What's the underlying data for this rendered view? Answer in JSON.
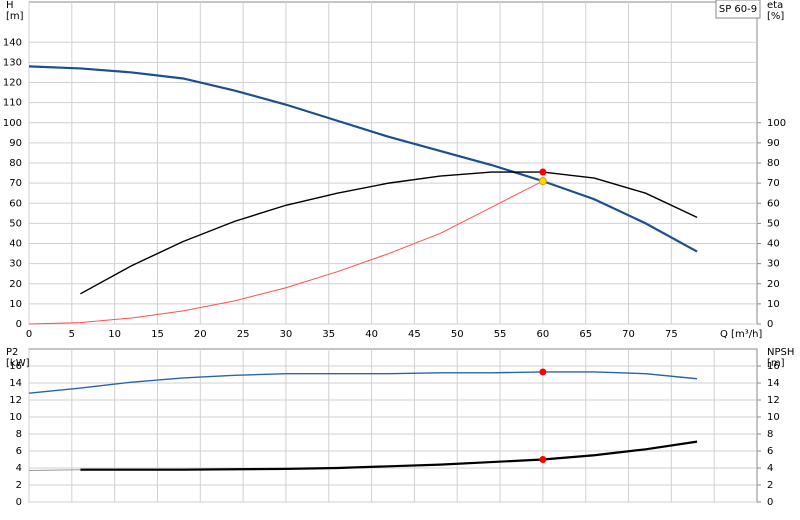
{
  "chart_data": [
    {
      "type": "line",
      "title": "SP 60-9",
      "ylabel": [
        "H",
        "[m]"
      ],
      "y2label": [
        "eta",
        "[%]"
      ],
      "xlabel": "Q [m³/h]",
      "xlim": [
        0,
        85
      ],
      "xticks": [
        0,
        5,
        10,
        15,
        20,
        25,
        30,
        35,
        40,
        45,
        50,
        55,
        60,
        65,
        70,
        75
      ],
      "ylim": [
        0,
        160
      ],
      "yticks": [
        0,
        10,
        20,
        30,
        40,
        50,
        60,
        70,
        80,
        90,
        100,
        110,
        120,
        130,
        140
      ],
      "y2lim": [
        0,
        160
      ],
      "y2ticks": [
        0,
        10,
        20,
        30,
        40,
        50,
        60,
        70,
        80,
        90,
        100
      ],
      "grid": true,
      "series": [
        {
          "color": "#1f4e8c",
          "width": 2.2,
          "x": [
            0,
            6,
            12,
            18,
            24,
            30,
            36,
            42,
            48,
            54,
            60,
            66,
            72,
            78
          ],
          "values": [
            128,
            127,
            125,
            122,
            116,
            109,
            101,
            93,
            86,
            79,
            71,
            62,
            50,
            36
          ]
        },
        {
          "color": "#000000",
          "width": 1.4,
          "axis": "y2",
          "x": [
            6,
            12,
            18,
            24,
            30,
            36,
            42,
            48,
            54,
            60,
            66,
            72,
            78
          ],
          "values": [
            15,
            29,
            41,
            51,
            59,
            65,
            70,
            73.5,
            75.5,
            75.5,
            72.5,
            65,
            53
          ]
        },
        {
          "color": "#ff5050",
          "width": 1,
          "x": [
            0,
            6,
            12,
            18,
            24,
            30,
            36,
            42,
            48,
            54,
            60
          ],
          "values": [
            0,
            0.7,
            3,
            6.5,
            11.5,
            18,
            26,
            35,
            45,
            58,
            71
          ]
        }
      ],
      "markers": [
        {
          "x": 60,
          "y": 75.5,
          "color": "#ff0000"
        },
        {
          "x": 60,
          "y": 71,
          "color": "#ffd700"
        }
      ]
    },
    {
      "type": "line",
      "ylabel": [
        "P2",
        "[kW]"
      ],
      "y2label": [
        "NPSH",
        "[m]"
      ],
      "xlim": [
        0,
        85
      ],
      "xticks": [
        0,
        5,
        10,
        15,
        20,
        25,
        30,
        35,
        40,
        45,
        50,
        55,
        60,
        65,
        70,
        75,
        80
      ],
      "ylim": [
        0,
        18
      ],
      "yticks": [
        0,
        2,
        4,
        6,
        8,
        10,
        12,
        14,
        16
      ],
      "y2lim": [
        0,
        18
      ],
      "y2ticks": [
        0,
        2,
        4,
        6,
        8,
        10,
        12,
        14,
        16
      ],
      "grid": true,
      "series": [
        {
          "color": "#2a64a8",
          "width": 1.4,
          "x": [
            0,
            6,
            12,
            18,
            24,
            30,
            36,
            42,
            48,
            54,
            60,
            66,
            72,
            78
          ],
          "values": [
            12.8,
            13.4,
            14.1,
            14.6,
            14.9,
            15.1,
            15.1,
            15.1,
            15.2,
            15.2,
            15.3,
            15.3,
            15.1,
            14.5
          ]
        },
        {
          "color": "#000000",
          "width": 2.2,
          "axis": "y2",
          "x": [
            6,
            12,
            18,
            24,
            30,
            36,
            42,
            48,
            54,
            60,
            66,
            72,
            78
          ],
          "values": [
            3.8,
            3.8,
            3.8,
            3.85,
            3.9,
            4.0,
            4.2,
            4.4,
            4.7,
            5.0,
            5.5,
            6.2,
            7.1
          ]
        },
        {
          "color": "#999999",
          "width": 1,
          "axis": "y2",
          "x": [
            0,
            6
          ],
          "values": [
            3.7,
            3.8
          ]
        }
      ],
      "markers": [
        {
          "x": 60,
          "y": 15.3,
          "color": "#ff0000"
        },
        {
          "x": 60,
          "y": 5.0,
          "color": "#ff0000",
          "axis": "y2"
        }
      ]
    }
  ]
}
